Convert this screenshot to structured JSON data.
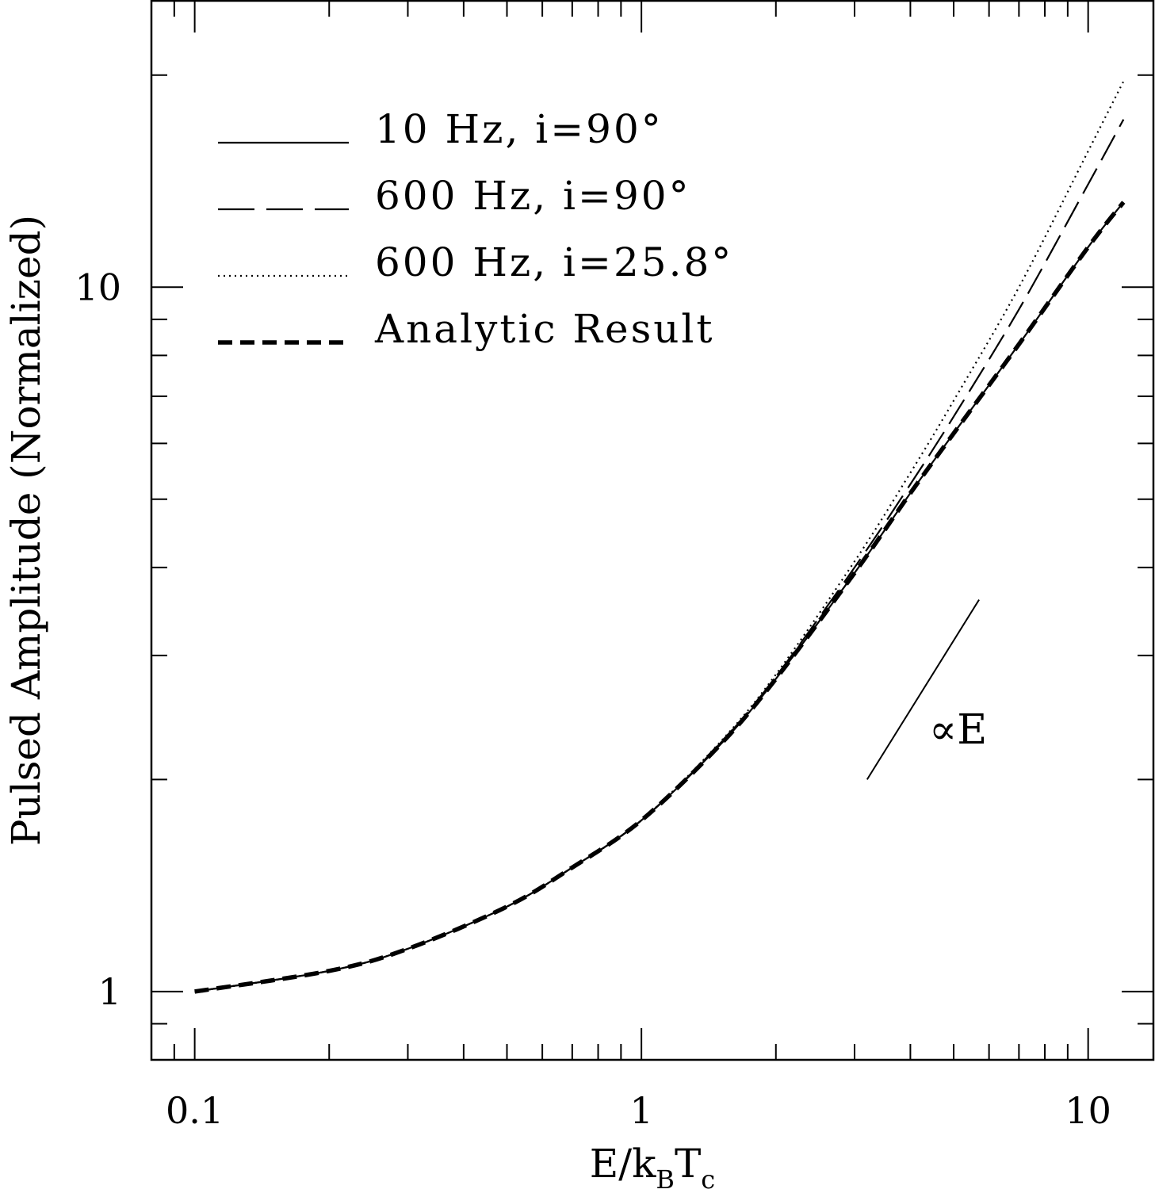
{
  "chart_data": {
    "type": "line",
    "x_scale": "log",
    "y_scale": "log",
    "xlabel": {
      "main": "E/k",
      "sub1": "B",
      "mid": "T",
      "sub2": "c"
    },
    "ylabel": "Pulsed Amplitude (Normalized)",
    "xlim": [
      0.08,
      14
    ],
    "ylim": [
      0.8,
      25.5
    ],
    "x_ticks": [
      {
        "value": 0.1,
        "label": "0.1"
      },
      {
        "value": 1,
        "label": "1"
      },
      {
        "value": 10,
        "label": "10"
      }
    ],
    "y_ticks": [
      {
        "value": 1,
        "label": "1"
      },
      {
        "value": 10,
        "label": "10"
      }
    ],
    "grid": false,
    "legend_position": "top-left",
    "series": [
      {
        "name": "10 Hz, i=90°",
        "style": "solid",
        "x": [
          0.1,
          0.2,
          0.3,
          0.5,
          0.7,
          1.0,
          1.5,
          2.0,
          3.0,
          4.0,
          5.0,
          7.0,
          10.0,
          12.0
        ],
        "y": [
          1.0,
          1.07,
          1.15,
          1.32,
          1.5,
          1.75,
          2.24,
          2.78,
          3.93,
          5.1,
          6.2,
          8.3,
          11.4,
          13.2
        ]
      },
      {
        "name": "600 Hz, i=90°",
        "style": "long-dash",
        "x": [
          0.1,
          0.2,
          0.3,
          0.5,
          0.7,
          1.0,
          1.5,
          2.0,
          3.0,
          4.0,
          5.0,
          7.0,
          10.0,
          12.0
        ],
        "y": [
          1.0,
          1.07,
          1.15,
          1.32,
          1.5,
          1.75,
          2.25,
          2.8,
          4.0,
          5.25,
          6.55,
          9.3,
          14.0,
          17.3
        ]
      },
      {
        "name": "600 Hz, i=25.8°",
        "style": "dotted",
        "x": [
          0.1,
          0.2,
          0.3,
          0.5,
          0.7,
          1.0,
          1.5,
          2.0,
          3.0,
          4.0,
          5.0,
          7.0,
          10.0,
          12.0
        ],
        "y": [
          1.0,
          1.07,
          1.15,
          1.32,
          1.5,
          1.75,
          2.26,
          2.82,
          4.08,
          5.45,
          6.9,
          10.0,
          15.6,
          19.6
        ]
      },
      {
        "name": "Analytic Result",
        "style": "heavy-dash",
        "x": [
          0.1,
          0.2,
          0.3,
          0.5,
          0.7,
          1.0,
          1.5,
          2.0,
          3.0,
          4.0,
          5.0,
          7.0,
          10.0,
          12.0
        ],
        "y": [
          1.0,
          1.07,
          1.15,
          1.32,
          1.5,
          1.75,
          2.24,
          2.78,
          3.93,
          5.1,
          6.2,
          8.3,
          11.4,
          13.2
        ]
      }
    ],
    "annotation": {
      "label": "∝E",
      "reference_line": {
        "x": [
          3.2,
          5.7
        ],
        "y": [
          2.0,
          3.6
        ]
      }
    }
  }
}
